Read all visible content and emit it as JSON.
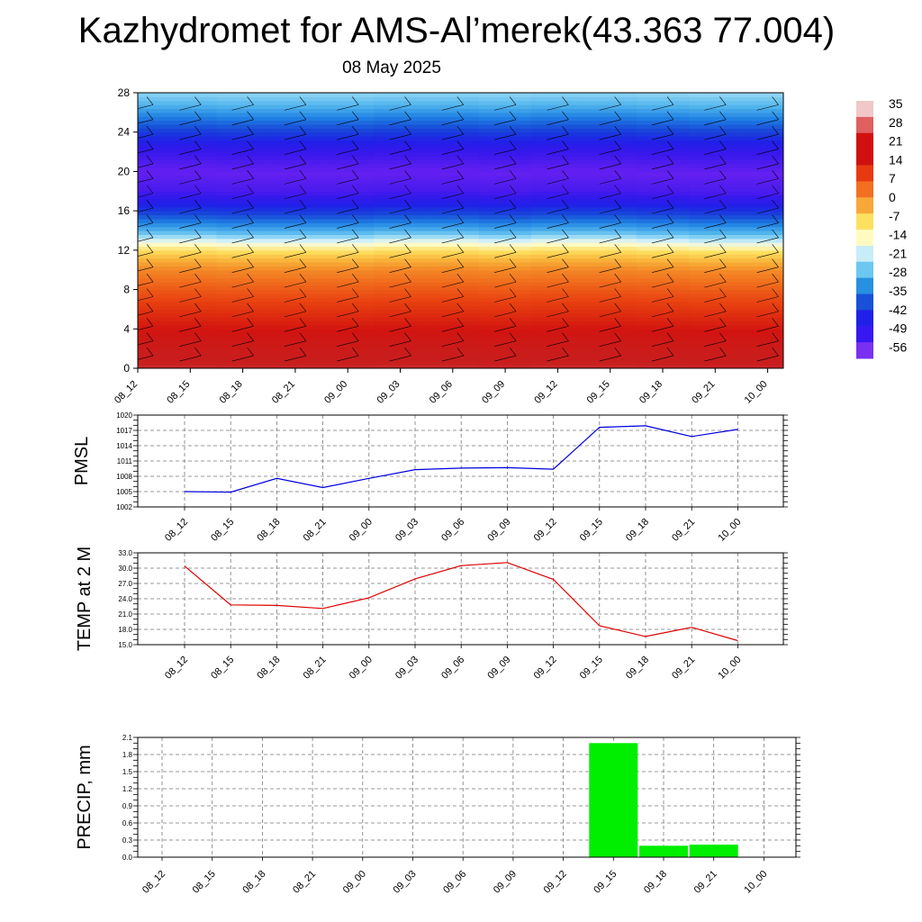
{
  "header": {
    "title": "Kazhydromet for AMS-Al’merek(43.363 77.004)",
    "date": "08 May 2025"
  },
  "colorbar": {
    "labels": [
      "35",
      "28",
      "21",
      "14",
      "7",
      "0",
      "-7",
      "-14",
      "-21",
      "-28",
      "-35",
      "-42",
      "-49",
      "-56"
    ],
    "colors_top_to_bottom": [
      "#f0c8c8",
      "#e06060",
      "#d01010",
      "#d01010",
      "#e83a10",
      "#f27020",
      "#f8a838",
      "#fde060",
      "#fffbc0",
      "#c8ecf8",
      "#6cc8f0",
      "#2890e0",
      "#1850d8",
      "#2020e8",
      "#3818f0",
      "#7a30f0"
    ]
  },
  "chart_data": [
    {
      "type": "heatmap",
      "title": "",
      "xlabel": "",
      "ylabel": "",
      "x": [
        "08_12",
        "08_15",
        "08_18",
        "08_21",
        "09_00",
        "09_03",
        "09_06",
        "09_09",
        "09_12",
        "09_15",
        "09_18",
        "09_21",
        "10_00"
      ],
      "y_ticks": [
        0,
        4,
        8,
        12,
        16,
        20,
        24,
        28
      ],
      "ylim": [
        0,
        28
      ],
      "zlim": [
        -56,
        35
      ],
      "profile_height": [
        0,
        2,
        4,
        6,
        8,
        10,
        11,
        12,
        13,
        14,
        16,
        18,
        20,
        22,
        24,
        26,
        28
      ],
      "profile_value": [
        30,
        27,
        22,
        17,
        12,
        6,
        0,
        -6,
        -14,
        -26,
        -40,
        -52,
        -56,
        -50,
        -40,
        -30,
        -20
      ],
      "freezing_level": [
        12.8,
        12.8,
        12.7,
        12.7,
        12.7,
        12.8,
        12.8,
        12.7,
        12.8,
        12.8,
        12.7,
        12.6,
        12.6
      ],
      "overlay": "wind barbs"
    },
    {
      "type": "line",
      "ylabel": "PMSL",
      "x": [
        "08_12",
        "08_15",
        "08_18",
        "08_21",
        "09_00",
        "09_03",
        "09_06",
        "09_09",
        "09_12",
        "09_15",
        "09_18",
        "09_21",
        "10_00"
      ],
      "y_ticks": [
        "1002",
        "1005",
        "1008",
        "1011",
        "1014",
        "1017",
        "1020"
      ],
      "ylim": [
        1002,
        1020
      ],
      "series": [
        {
          "values": [
            1005.0,
            1004.9,
            1007.6,
            1005.8,
            1007.6,
            1009.3,
            1009.6,
            1009.7,
            1009.4,
            1017.6,
            1017.9,
            1015.8,
            1017.2
          ],
          "color": "#0000dd"
        }
      ],
      "grid": true
    },
    {
      "type": "line",
      "ylabel": "TEMP at 2 M",
      "x": [
        "08_12",
        "08_15",
        "08_18",
        "08_21",
        "09_00",
        "09_03",
        "09_06",
        "09_09",
        "09_12",
        "09_15",
        "09_18",
        "09_21",
        "10_00"
      ],
      "y_ticks": [
        "15.0",
        "18.0",
        "21.0",
        "24.0",
        "27.0",
        "30.0",
        "33.0"
      ],
      "ylim": [
        15,
        33
      ],
      "series": [
        {
          "values": [
            30.4,
            22.8,
            22.7,
            22.1,
            24.2,
            27.9,
            30.5,
            31.1,
            27.8,
            18.7,
            16.6,
            18.4,
            15.8
          ],
          "color": "#dd0000"
        }
      ],
      "grid": true
    },
    {
      "type": "bar",
      "ylabel": "PRECIP, mm",
      "x": [
        "08_12",
        "08_15",
        "08_18",
        "08_21",
        "09_00",
        "09_03",
        "09_06",
        "09_09",
        "09_12",
        "09_15",
        "09_18",
        "09_21",
        "10_00"
      ],
      "y_ticks": [
        "0.0",
        "0.3",
        "0.6",
        "0.9",
        "1.2",
        "1.5",
        "1.8",
        "2.1"
      ],
      "ylim": [
        0,
        2.1
      ],
      "values": [
        0,
        0,
        0,
        0,
        0,
        0,
        0,
        0,
        0,
        2.0,
        0.2,
        0.22,
        0
      ],
      "color": "#00ee00",
      "grid": true
    }
  ]
}
